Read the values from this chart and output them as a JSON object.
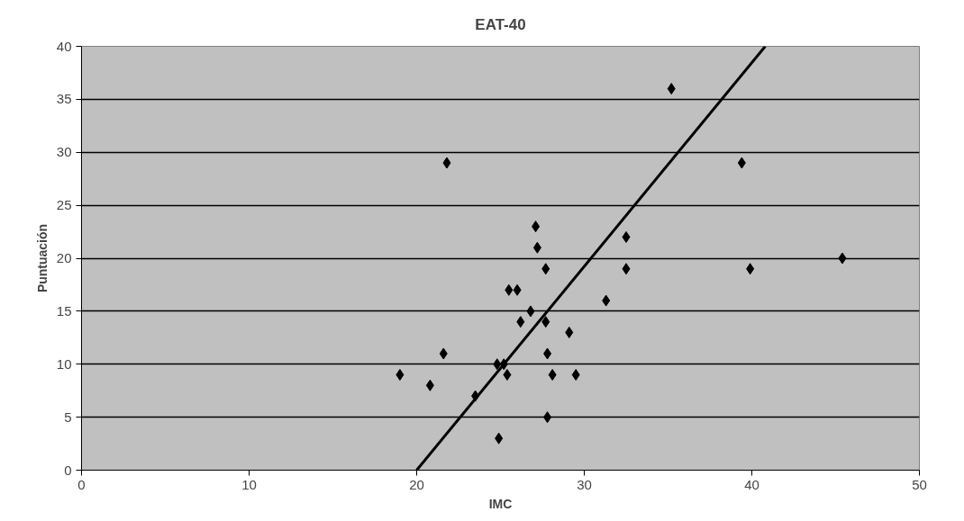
{
  "chart_data": {
    "type": "scatter",
    "title": "EAT-40",
    "xlabel": "IMC",
    "ylabel": "Puntuación",
    "xlim": [
      0,
      50
    ],
    "xticks": [
      0,
      10,
      20,
      30,
      40,
      50
    ],
    "ylim": [
      0,
      40
    ],
    "yticks": [
      0,
      5,
      10,
      15,
      20,
      25,
      30,
      35,
      40
    ],
    "grid": "y",
    "marker": "diamond",
    "series": [
      {
        "color": "#000000",
        "x": [
          19.0,
          20.8,
          21.6,
          21.8,
          23.5,
          24.9,
          24.8,
          25.2,
          25.4,
          25.5,
          26.0,
          26.2,
          26.8,
          27.1,
          27.2,
          27.7,
          27.7,
          27.8,
          28.1,
          27.8,
          29.1,
          29.5,
          31.3,
          32.5,
          32.5,
          35.2,
          39.4,
          39.9,
          45.4
        ],
        "values": [
          9,
          8,
          11,
          29,
          7,
          3,
          10,
          10,
          9,
          17,
          17,
          14,
          15,
          23,
          21,
          19,
          14,
          11,
          9,
          5,
          13,
          9,
          16,
          22,
          19,
          36,
          29,
          19,
          20
        ]
      },
      {
        "type": "line",
        "marker": "none",
        "color": "#000000",
        "x": [
          20.0,
          40.8
        ],
        "values": [
          0,
          40
        ]
      }
    ]
  }
}
